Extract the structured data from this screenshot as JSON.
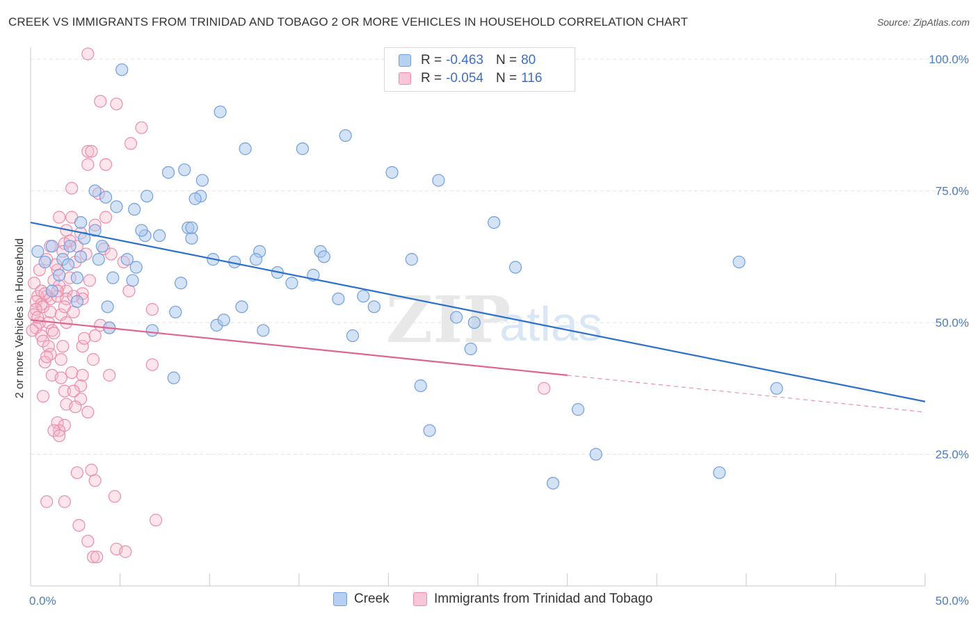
{
  "title": "CREEK VS IMMIGRANTS FROM TRINIDAD AND TOBAGO 2 OR MORE VEHICLES IN HOUSEHOLD CORRELATION CHART",
  "source": "Source: ZipAtlas.com",
  "watermark": {
    "zip": "ZIP",
    "atlas": "atlas"
  },
  "colors": {
    "creek_fill": "#a9c6ee",
    "creek_stroke": "#6f9fdc",
    "creek_line": "#2b6fcb",
    "tt_fill": "#f5b6c9",
    "tt_stroke": "#ec8bab",
    "tt_line": "#e0628f",
    "tick_text": "#4a7cc0",
    "grid": "#e4e4e4"
  },
  "legend": {
    "rows": [
      {
        "r_label": "R =",
        "r_value": "-0.463",
        "n_label": "N =",
        "n_value": "80"
      },
      {
        "r_label": "R =",
        "r_value": "-0.054",
        "n_label": "N =",
        "n_value": "116"
      }
    ]
  },
  "bottom_legend": [
    "Creek",
    "Immigrants from Trinidad and Tobago"
  ],
  "chart_data": {
    "type": "scatter",
    "ylabel": "2 or more Vehicles in Household",
    "xlabel": "",
    "x_tick_labels": [
      "0.0%",
      "50.0%"
    ],
    "y_tick_labels": [
      "100.0%",
      "75.0%",
      "50.0%",
      "25.0%"
    ],
    "y_ticks": [
      100,
      75,
      50,
      25
    ],
    "xlim": [
      0,
      50
    ],
    "ylim": [
      0,
      102
    ],
    "grid": true,
    "series": [
      {
        "name": "Creek",
        "r": -0.463,
        "n": 80,
        "trend": {
          "x": [
            0,
            50
          ],
          "y": [
            69.0,
            35.0
          ]
        },
        "points": [
          [
            5.1,
            98
          ],
          [
            10.6,
            90
          ],
          [
            12.0,
            83
          ],
          [
            15.2,
            83
          ],
          [
            17.6,
            85.5
          ],
          [
            20.2,
            78.5
          ],
          [
            22.8,
            77
          ],
          [
            7.7,
            78.5
          ],
          [
            8.6,
            79
          ],
          [
            9.6,
            77
          ],
          [
            9.5,
            74
          ],
          [
            9.2,
            73.5
          ],
          [
            6.5,
            74
          ],
          [
            4.2,
            73.8
          ],
          [
            4.8,
            72
          ],
          [
            3.6,
            75
          ],
          [
            5.8,
            71.5
          ],
          [
            2.8,
            69
          ],
          [
            6.4,
            66.5
          ],
          [
            6.2,
            67.5
          ],
          [
            9.0,
            66
          ],
          [
            8.8,
            68
          ],
          [
            7.2,
            66.5
          ],
          [
            3.6,
            67.5
          ],
          [
            4.0,
            64.5
          ],
          [
            5.4,
            62
          ],
          [
            2.2,
            64.5
          ],
          [
            2.8,
            62.5
          ],
          [
            1.8,
            62
          ],
          [
            1.2,
            64.5
          ],
          [
            0.4,
            63.5
          ],
          [
            0.8,
            61.5
          ],
          [
            1.6,
            59
          ],
          [
            2.6,
            58.5
          ],
          [
            4.6,
            58.5
          ],
          [
            5.7,
            58
          ],
          [
            10.2,
            62
          ],
          [
            11.4,
            61.5
          ],
          [
            12.8,
            63.5
          ],
          [
            13.8,
            59.5
          ],
          [
            14.6,
            57.5
          ],
          [
            15.8,
            59
          ],
          [
            16.2,
            63.5
          ],
          [
            16.4,
            62.5
          ],
          [
            21.3,
            62
          ],
          [
            25.9,
            69
          ],
          [
            27.1,
            60.5
          ],
          [
            39.6,
            61.5
          ],
          [
            17.2,
            54.5
          ],
          [
            18.6,
            55
          ],
          [
            19.2,
            53
          ],
          [
            11.8,
            53
          ],
          [
            8.4,
            57.5
          ],
          [
            2.6,
            54
          ],
          [
            4.3,
            53
          ],
          [
            4.4,
            49
          ],
          [
            6.8,
            48.5
          ],
          [
            8.1,
            52
          ],
          [
            10.4,
            49.5
          ],
          [
            10.8,
            50.5
          ],
          [
            13.0,
            48.5
          ],
          [
            18.0,
            47.5
          ],
          [
            23.8,
            51
          ],
          [
            24.8,
            50
          ],
          [
            24.6,
            45
          ],
          [
            8.0,
            39.5
          ],
          [
            21.8,
            38
          ],
          [
            41.7,
            37.5
          ],
          [
            30.6,
            33.5
          ],
          [
            22.3,
            29.5
          ],
          [
            31.6,
            25
          ],
          [
            38.5,
            21.5
          ],
          [
            29.2,
            19.5
          ],
          [
            1.2,
            56
          ],
          [
            2.1,
            61
          ],
          [
            3.8,
            62
          ],
          [
            9.0,
            68
          ],
          [
            12.6,
            62
          ],
          [
            3.0,
            66
          ],
          [
            5.9,
            60.5
          ]
        ]
      },
      {
        "name": "Immigrants from Trinidad and Tobago",
        "r": -0.054,
        "n": 116,
        "trend": {
          "x": [
            0,
            30
          ],
          "y": [
            50.5,
            40.0
          ]
        },
        "trend_dashed": {
          "x": [
            30,
            50
          ],
          "y": [
            40.0,
            33.0
          ]
        },
        "points": [
          [
            3.2,
            101
          ],
          [
            3.9,
            92
          ],
          [
            4.8,
            91.5
          ],
          [
            6.2,
            87
          ],
          [
            5.6,
            84
          ],
          [
            3.2,
            82.5
          ],
          [
            3.4,
            82.5
          ],
          [
            3.2,
            80
          ],
          [
            4.2,
            80
          ],
          [
            2.3,
            75.5
          ],
          [
            3.8,
            74.5
          ],
          [
            3.6,
            68.5
          ],
          [
            4.2,
            70
          ],
          [
            1.6,
            70
          ],
          [
            2.3,
            70
          ],
          [
            2.0,
            67.5
          ],
          [
            1.9,
            65
          ],
          [
            1.1,
            64.5
          ],
          [
            2.2,
            65.5
          ],
          [
            2.6,
            64.5
          ],
          [
            1.8,
            63.5
          ],
          [
            3.1,
            63
          ],
          [
            4.1,
            64
          ],
          [
            2.5,
            61.5
          ],
          [
            0.9,
            62
          ],
          [
            1.5,
            60
          ],
          [
            5.2,
            61.5
          ],
          [
            0.2,
            57.5
          ],
          [
            1.3,
            58
          ],
          [
            1.6,
            57
          ],
          [
            0.9,
            55
          ],
          [
            2.0,
            56
          ],
          [
            0.4,
            55
          ],
          [
            1.1,
            54.5
          ],
          [
            1.5,
            55
          ],
          [
            2.9,
            55.5
          ],
          [
            0.3,
            54
          ],
          [
            0.6,
            53.5
          ],
          [
            2.0,
            54.5
          ],
          [
            2.9,
            54.5
          ],
          [
            0.7,
            53
          ],
          [
            0.3,
            52.5
          ],
          [
            1.1,
            52
          ],
          [
            0.2,
            51.5
          ],
          [
            1.7,
            51.5
          ],
          [
            0.5,
            50
          ],
          [
            1.0,
            50
          ],
          [
            0.3,
            49
          ],
          [
            0.1,
            48.5
          ],
          [
            1.2,
            48.5
          ],
          [
            0.6,
            47.5
          ],
          [
            0.7,
            46.5
          ],
          [
            3.9,
            49.5
          ],
          [
            4.4,
            49
          ],
          [
            6.8,
            52.5
          ],
          [
            1.0,
            45.5
          ],
          [
            1.8,
            45.5
          ],
          [
            1.1,
            44
          ],
          [
            2.9,
            45.5
          ],
          [
            1.7,
            43
          ],
          [
            0.8,
            42.5
          ],
          [
            3.5,
            43
          ],
          [
            6.8,
            42
          ],
          [
            4.4,
            40
          ],
          [
            1.2,
            40
          ],
          [
            1.7,
            39.5
          ],
          [
            2.3,
            40.5
          ],
          [
            2.9,
            40
          ],
          [
            2.8,
            38
          ],
          [
            1.9,
            37
          ],
          [
            0.7,
            36
          ],
          [
            2.8,
            35.5
          ],
          [
            2.0,
            34.5
          ],
          [
            2.5,
            34
          ],
          [
            3.2,
            33
          ],
          [
            1.5,
            31
          ],
          [
            1.9,
            30.5
          ],
          [
            1.6,
            29.5
          ],
          [
            1.3,
            29.5
          ],
          [
            1.6,
            28.5
          ],
          [
            3.4,
            22
          ],
          [
            2.6,
            21.5
          ],
          [
            3.6,
            20
          ],
          [
            0.9,
            16
          ],
          [
            1.9,
            16
          ],
          [
            4.7,
            17
          ],
          [
            2.7,
            11.5
          ],
          [
            7.0,
            12.5
          ],
          [
            3.2,
            8.5
          ],
          [
            4.8,
            7
          ],
          [
            5.3,
            6.5
          ],
          [
            3.5,
            5.5
          ],
          [
            3.7,
            5.5
          ],
          [
            28.7,
            37.5
          ],
          [
            1.5,
            56
          ],
          [
            2.4,
            55
          ],
          [
            0.6,
            56
          ],
          [
            3.3,
            58
          ],
          [
            2.2,
            58.5
          ],
          [
            1.4,
            61
          ],
          [
            4.5,
            63
          ],
          [
            2.8,
            67
          ],
          [
            0.5,
            60
          ],
          [
            0.8,
            55.5
          ],
          [
            1.9,
            53
          ],
          [
            2.4,
            52
          ],
          [
            3.0,
            47
          ],
          [
            0.4,
            51
          ],
          [
            1.3,
            48
          ],
          [
            2.0,
            50
          ],
          [
            0.9,
            43.5
          ],
          [
            2.4,
            37
          ],
          [
            3.6,
            47.5
          ],
          [
            5.5,
            56
          ]
        ]
      }
    ]
  }
}
